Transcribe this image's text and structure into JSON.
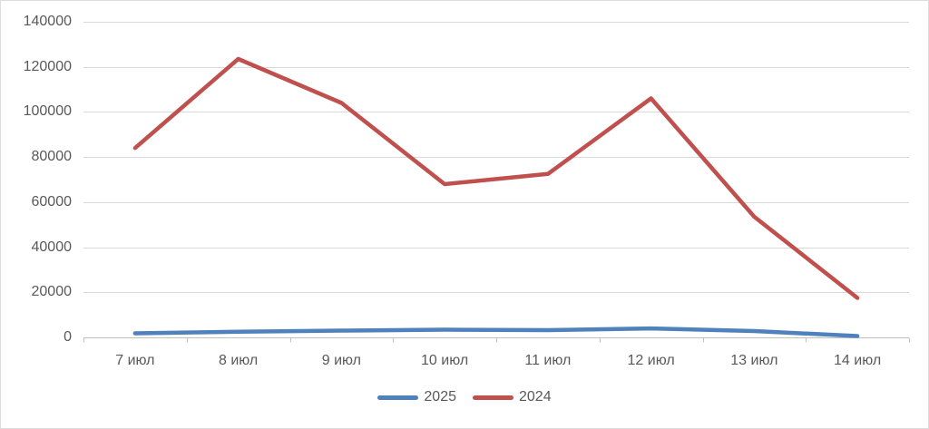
{
  "chart_data": {
    "type": "line",
    "title": "",
    "xlabel": "",
    "ylabel": "",
    "categories": [
      "7 июл",
      "8 июл",
      "9 июл",
      "10 июл",
      "11 июл",
      "12 июл",
      "13 июл",
      "14 июл"
    ],
    "series": [
      {
        "name": "2025",
        "color": "#4F81BD",
        "values": [
          1800,
          2500,
          3000,
          3400,
          3200,
          4000,
          2800,
          600
        ]
      },
      {
        "name": "2024",
        "color": "#C0504D",
        "values": [
          84000,
          123500,
          104000,
          68000,
          72500,
          106000,
          53500,
          17500
        ]
      }
    ],
    "ylim": [
      0,
      140000
    ],
    "yticks": [
      0,
      20000,
      40000,
      60000,
      80000,
      100000,
      120000,
      140000
    ],
    "grid": "horizontal",
    "legend_position": "bottom",
    "colors": {
      "gridline": "#D9D9D9",
      "axis_line": "#BFBFBF",
      "tick_label": "#595959",
      "background": "#FFFFFF"
    }
  }
}
